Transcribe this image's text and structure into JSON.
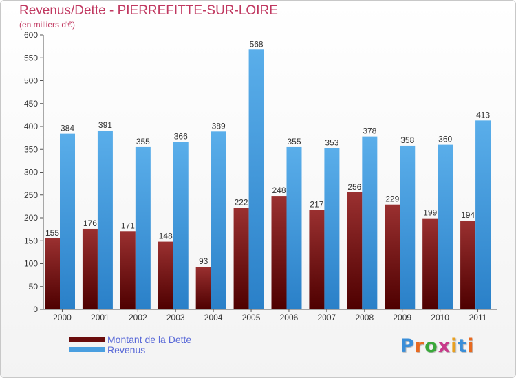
{
  "header": {
    "title": "Revenus/Dette - PIERREFITTE-SUR-LOIRE",
    "subtitle": "(en milliers d'€)"
  },
  "logo": {
    "text": "Proxiti"
  },
  "colors": {
    "dette": "#7a1a1a",
    "revenus": "#4a9fe0",
    "title": "#c03860",
    "legend_text": "#5a6ad8"
  },
  "chart_data": {
    "type": "bar",
    "title": "Revenus/Dette - PIERREFITTE-SUR-LOIRE",
    "subtitle": "(en milliers d'€)",
    "categories": [
      "2000",
      "2001",
      "2002",
      "2003",
      "2004",
      "2005",
      "2006",
      "2007",
      "2008",
      "2009",
      "2010",
      "2011"
    ],
    "series": [
      {
        "name": "Montant de la Dette",
        "values": [
          155,
          176,
          171,
          148,
          93,
          222,
          248,
          217,
          256,
          229,
          199,
          194
        ]
      },
      {
        "name": "Revenus",
        "values": [
          384,
          391,
          355,
          366,
          389,
          568,
          355,
          353,
          378,
          358,
          360,
          413
        ]
      }
    ],
    "yticks": [
      "0",
      "50",
      "100",
      "150",
      "200",
      "250",
      "300",
      "350",
      "400",
      "450",
      "500",
      "550",
      "600"
    ],
    "ylim": [
      0,
      600
    ],
    "grid": false,
    "legend": "bottom-left"
  }
}
